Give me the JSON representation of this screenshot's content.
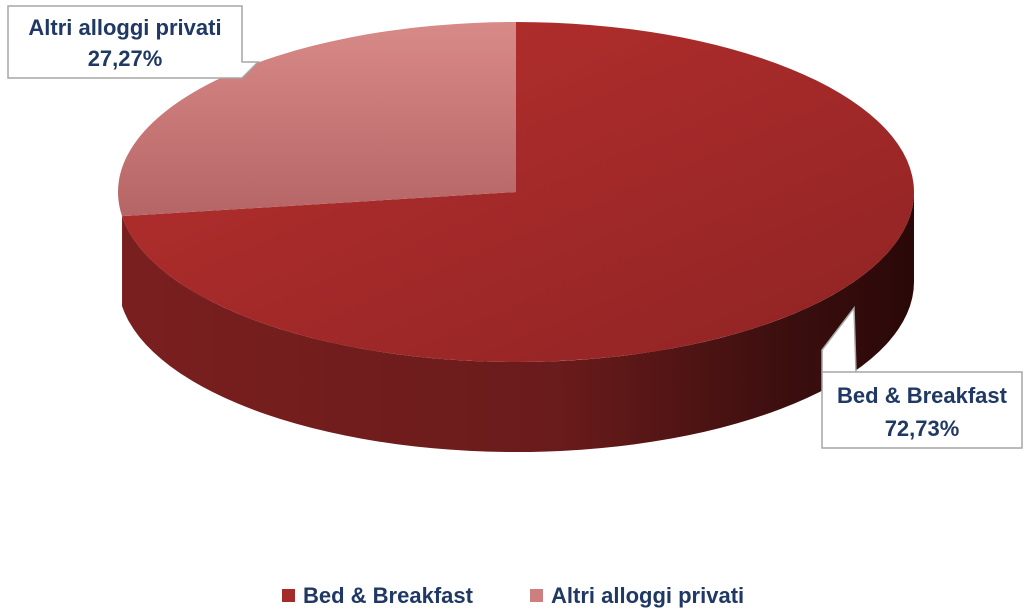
{
  "chart_data": {
    "type": "pie",
    "categories": [
      "Bed & Breakfast",
      "Altri alloggi privati"
    ],
    "values": [
      72.73,
      27.27
    ],
    "labels": [
      "Bed & Breakfast",
      "Altri alloggi privati"
    ],
    "value_labels": [
      "72,73%",
      "27,27%"
    ],
    "legend": {
      "position": "bottom",
      "entries": [
        "Bed & Breakfast",
        "Altri alloggi privati"
      ]
    },
    "colors": {
      "slice_0": "#a52a2a",
      "slice_1": "#cd7f7f",
      "label_text": "#1f3864"
    },
    "style": "3d-exploded"
  }
}
